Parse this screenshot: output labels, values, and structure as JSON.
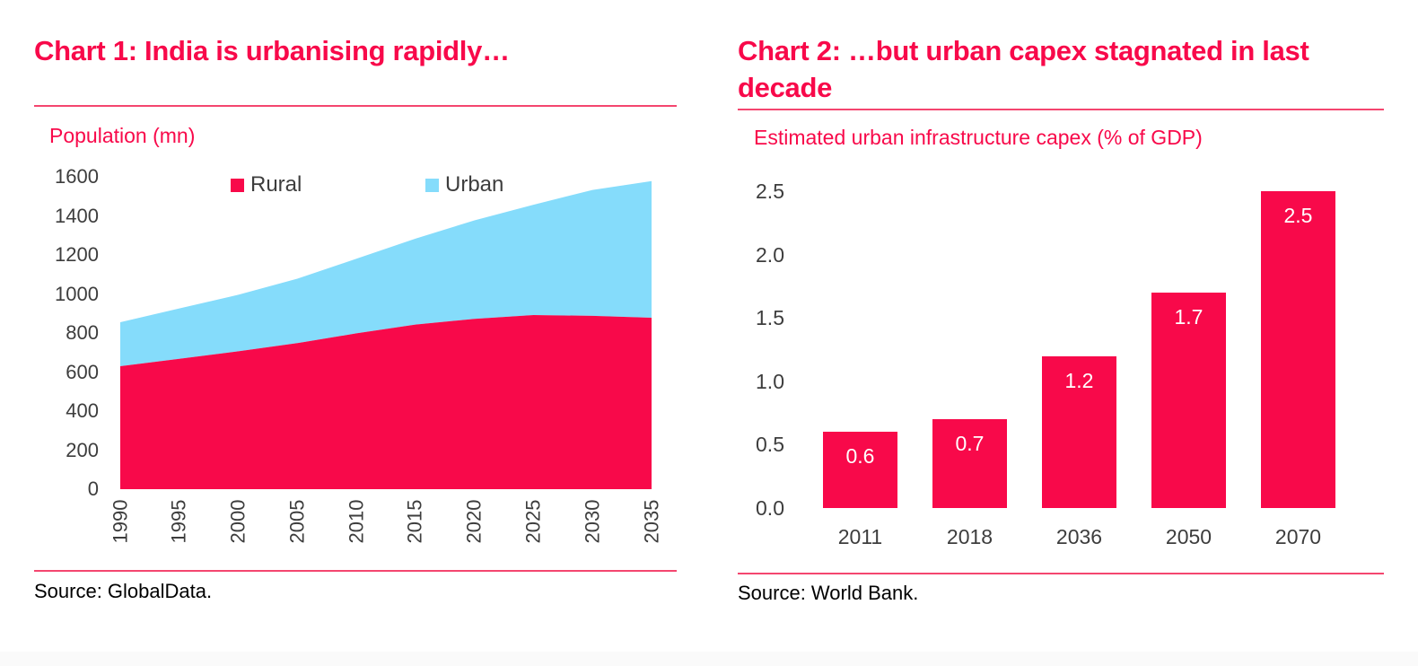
{
  "colors": {
    "accent_red": "#f8094a",
    "light_blue": "#85dcfb",
    "rule_pink": "#f4466f",
    "axis_text": "#3d3d3d",
    "source_text": "#000000",
    "bar_label_white": "#ffffff",
    "footer_strip": "#fafafa"
  },
  "chart_data": [
    {
      "id": "chart1",
      "type": "area",
      "stacked": true,
      "title": "Chart 1: India is urbanising rapidly…",
      "axis_label": "Population (mn)",
      "x": [
        1990,
        1995,
        2000,
        2005,
        2010,
        2015,
        2020,
        2025,
        2030,
        2035
      ],
      "x_tick_labels": [
        "1990",
        "1995",
        "2000",
        "2005",
        "2010",
        "2015",
        "2020",
        "2025",
        "2030",
        "2035"
      ],
      "series": [
        {
          "name": "Rural",
          "color": "#f8094a",
          "values": [
            630,
            668,
            706,
            748,
            798,
            843,
            872,
            892,
            888,
            878
          ]
        },
        {
          "name": "Urban",
          "color": "#85dcfb",
          "values": [
            225,
            258,
            290,
            330,
            382,
            440,
            505,
            565,
            645,
            700
          ]
        }
      ],
      "ylim": [
        0,
        1600
      ],
      "yticks": [
        1600,
        1400,
        1200,
        1000,
        800,
        600,
        400,
        200,
        0
      ],
      "legend_position": "top",
      "grid": false,
      "source": "Source: GlobalData."
    },
    {
      "id": "chart2",
      "type": "bar",
      "title": "Chart 2: …but urban capex stagnated in last decade",
      "axis_label": "Estimated urban infrastructure capex (% of GDP)",
      "categories": [
        "2011",
        "2018",
        "2036",
        "2050",
        "2070"
      ],
      "values": [
        0.6,
        0.7,
        1.2,
        1.7,
        2.5
      ],
      "data_labels": [
        "0.6",
        "0.7",
        "1.2",
        "1.7",
        "2.5"
      ],
      "ylim": [
        0,
        2.5
      ],
      "yticks": [
        "2.5",
        "2.0",
        "1.5",
        "1.0",
        "0.5",
        "0.0"
      ],
      "grid": false,
      "source": "Source: World Bank."
    }
  ]
}
